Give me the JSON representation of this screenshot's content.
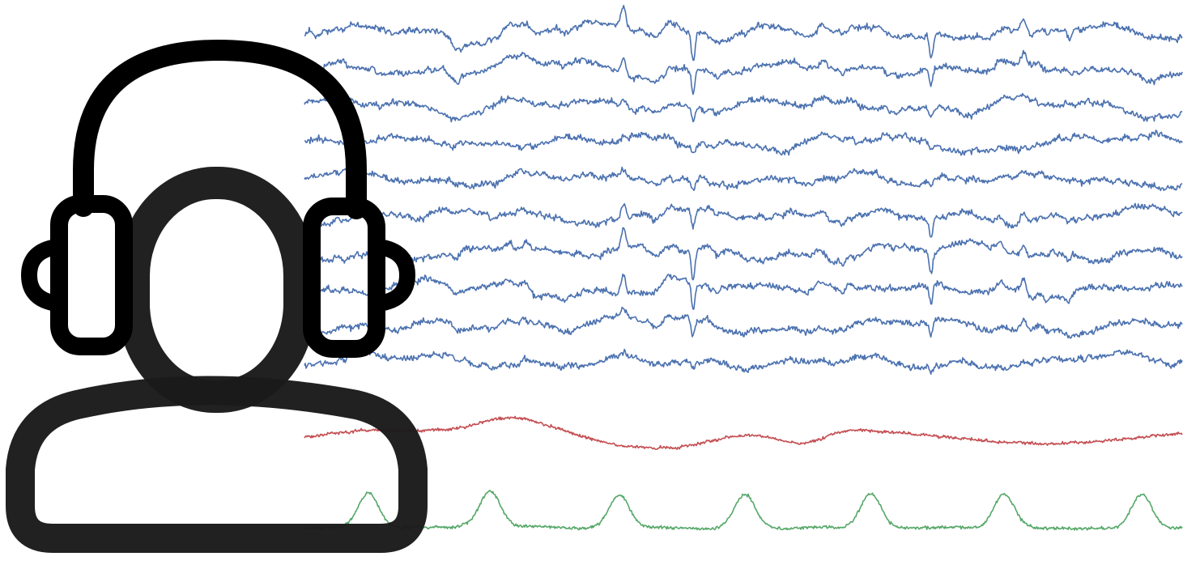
{
  "colors": {
    "background": "#ffffff",
    "eeg": "#4c72b0",
    "respiration": "#c44e52",
    "ecg": "#55a868",
    "icon": "#1a1a1a"
  },
  "icons": {
    "avatar": "headphones-user-icon"
  },
  "signals": [
    {
      "name": "eeg",
      "count": 10
    },
    {
      "name": "respiration",
      "count": 1
    },
    {
      "name": "ecg",
      "count": 1
    }
  ]
}
